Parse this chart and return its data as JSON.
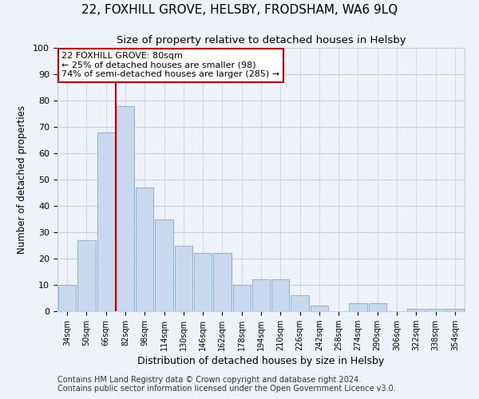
{
  "title": "22, FOXHILL GROVE, HELSBY, FRODSHAM, WA6 9LQ",
  "subtitle": "Size of property relative to detached houses in Helsby",
  "xlabel": "Distribution of detached houses by size in Helsby",
  "ylabel": "Number of detached properties",
  "bar_labels": [
    "34sqm",
    "50sqm",
    "66sqm",
    "82sqm",
    "98sqm",
    "114sqm",
    "130sqm",
    "146sqm",
    "162sqm",
    "178sqm",
    "194sqm",
    "210sqm",
    "226sqm",
    "242sqm",
    "258sqm",
    "274sqm",
    "290sqm",
    "306sqm",
    "322sqm",
    "338sqm",
    "354sqm"
  ],
  "bar_values": [
    10,
    27,
    68,
    78,
    47,
    35,
    25,
    22,
    22,
    10,
    12,
    12,
    6,
    2,
    0,
    3,
    3,
    0,
    1,
    1,
    1
  ],
  "bar_color": "#c8d9ed",
  "bar_edge_color": "#8ab0d0",
  "ylim": [
    0,
    100
  ],
  "yticks": [
    0,
    10,
    20,
    30,
    40,
    50,
    60,
    70,
    80,
    90,
    100
  ],
  "vline_color": "#cc0000",
  "vline_index": 3,
  "annotation_title": "22 FOXHILL GROVE: 80sqm",
  "annotation_line1": "← 25% of detached houses are smaller (98)",
  "annotation_line2": "74% of semi-detached houses are larger (285) →",
  "annotation_box_color": "#ffffff",
  "annotation_box_edge": "#cc0000",
  "background_color": "#eef2fa",
  "grid_color": "#c5cfe0",
  "footer1": "Contains HM Land Registry data © Crown copyright and database right 2024.",
  "footer2": "Contains public sector information licensed under the Open Government Licence v3.0.",
  "title_fontsize": 11,
  "subtitle_fontsize": 9.5,
  "footer_fontsize": 7
}
